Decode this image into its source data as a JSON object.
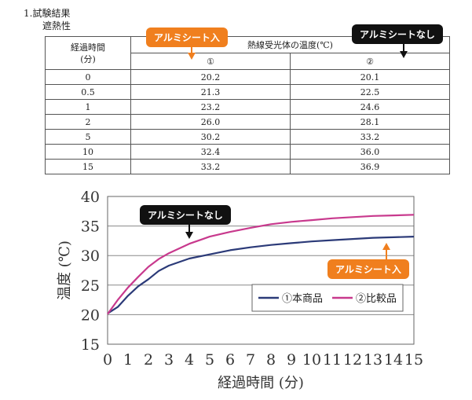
{
  "header": {
    "title": "1.試験結果",
    "subtitle": "遮熱性"
  },
  "table": {
    "col_time_line1": "経過時間",
    "col_time_line2": "(分)",
    "col_temp": "熱線受光体の温度(℃)",
    "col1": "①",
    "col2": "②",
    "rows": [
      {
        "time": "0",
        "v1": "20.2",
        "v2": "20.1"
      },
      {
        "time": "0.5",
        "v1": "21.3",
        "v2": "22.5"
      },
      {
        "time": "1",
        "v1": "23.2",
        "v2": "24.6"
      },
      {
        "time": "2",
        "v1": "26.0",
        "v2": "28.1"
      },
      {
        "time": "5",
        "v1": "30.2",
        "v2": "33.2"
      },
      {
        "time": "10",
        "v1": "32.4",
        "v2": "36.0"
      },
      {
        "time": "15",
        "v1": "33.2",
        "v2": "36.9"
      }
    ]
  },
  "callouts": {
    "table_aluminium": "アルミシート入",
    "table_no_aluminium": "アルミシートなし",
    "chart_no_aluminium": "アルミシートなし",
    "chart_aluminium": "アルミシート入",
    "orange_color": "#f07f1e",
    "black_color": "#111111"
  },
  "chart_data": {
    "type": "line",
    "title": "",
    "xlabel": "経過時間 (分)",
    "ylabel": "温度 (℃)",
    "xlim": [
      0,
      15
    ],
    "ylim": [
      15,
      40
    ],
    "xticks": [
      "0",
      "1",
      "2",
      "3",
      "4",
      "5",
      "6",
      "7",
      "8",
      "9",
      "10",
      "11",
      "12",
      "13",
      "14",
      "15"
    ],
    "yticks": [
      "15",
      "20",
      "25",
      "30",
      "35",
      "40"
    ],
    "grid": "horizontal",
    "legend_position": "bottom-right",
    "series": [
      {
        "name": "①本商品",
        "color": "#2b3a78",
        "x": [
          0,
          0.5,
          1,
          1.5,
          2,
          2.5,
          3,
          4,
          5,
          6,
          7,
          8,
          9,
          10,
          11,
          12,
          13,
          14,
          15
        ],
        "y": [
          20.2,
          21.3,
          23.2,
          24.8,
          26.0,
          27.4,
          28.3,
          29.5,
          30.2,
          30.9,
          31.4,
          31.8,
          32.1,
          32.4,
          32.6,
          32.8,
          33.0,
          33.1,
          33.2
        ]
      },
      {
        "name": "②比較品",
        "color": "#c8398d",
        "x": [
          0,
          0.5,
          1,
          1.5,
          2,
          2.5,
          3,
          4,
          5,
          6,
          7,
          8,
          9,
          10,
          11,
          12,
          13,
          14,
          15
        ],
        "y": [
          20.1,
          22.5,
          24.6,
          26.4,
          28.1,
          29.4,
          30.4,
          32.0,
          33.2,
          34.0,
          34.7,
          35.3,
          35.7,
          36.0,
          36.3,
          36.5,
          36.7,
          36.8,
          36.9
        ]
      }
    ]
  }
}
